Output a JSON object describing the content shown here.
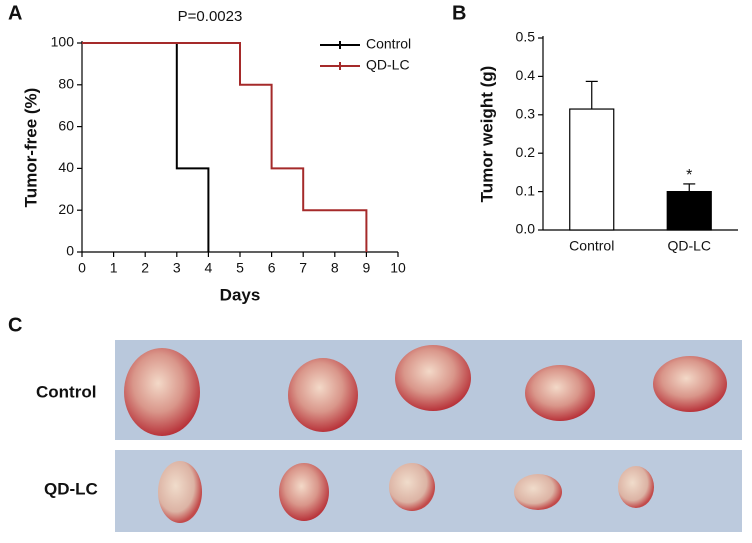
{
  "panel_labels": [
    "A",
    "B",
    "C"
  ],
  "chart_data": [
    {
      "type": "line",
      "step": true,
      "annotation": "P=0.0023",
      "xlabel": "Days",
      "ylabel": "Tumor-free (%)",
      "xlim": [
        0,
        10
      ],
      "xticks": [
        0,
        1,
        2,
        3,
        4,
        5,
        6,
        7,
        8,
        9,
        10
      ],
      "ylim": [
        0,
        100
      ],
      "yticks": [
        0,
        20,
        40,
        60,
        80,
        100
      ],
      "legend": "upper right",
      "series": [
        {
          "name": "Control",
          "color": "#000000",
          "x": [
            0,
            3,
            3,
            4,
            4
          ],
          "values": [
            100,
            100,
            40,
            40,
            0
          ]
        },
        {
          "name": "QD-LC",
          "color": "#a52a2a",
          "x": [
            0,
            5,
            5,
            6,
            6,
            7,
            7,
            9,
            9
          ],
          "values": [
            100,
            100,
            80,
            80,
            40,
            40,
            20,
            20,
            0
          ]
        }
      ]
    },
    {
      "type": "bar",
      "ylabel": "Tumor weight (g)",
      "annotation": "*",
      "categories": [
        "Control",
        "QD-LC"
      ],
      "values": [
        0.315,
        0.1
      ],
      "errors": [
        0.072,
        0.02
      ],
      "colors": [
        "#ffffff",
        "#000000"
      ],
      "ylim": [
        0,
        0.5
      ],
      "yticks": [
        {
          "value": 0,
          "label": "0.0"
        },
        0.1,
        0.2,
        0.3,
        0.4,
        0.5
      ]
    }
  ],
  "photo_panel": {
    "row_labels": [
      "Control",
      "QD-LC"
    ]
  }
}
